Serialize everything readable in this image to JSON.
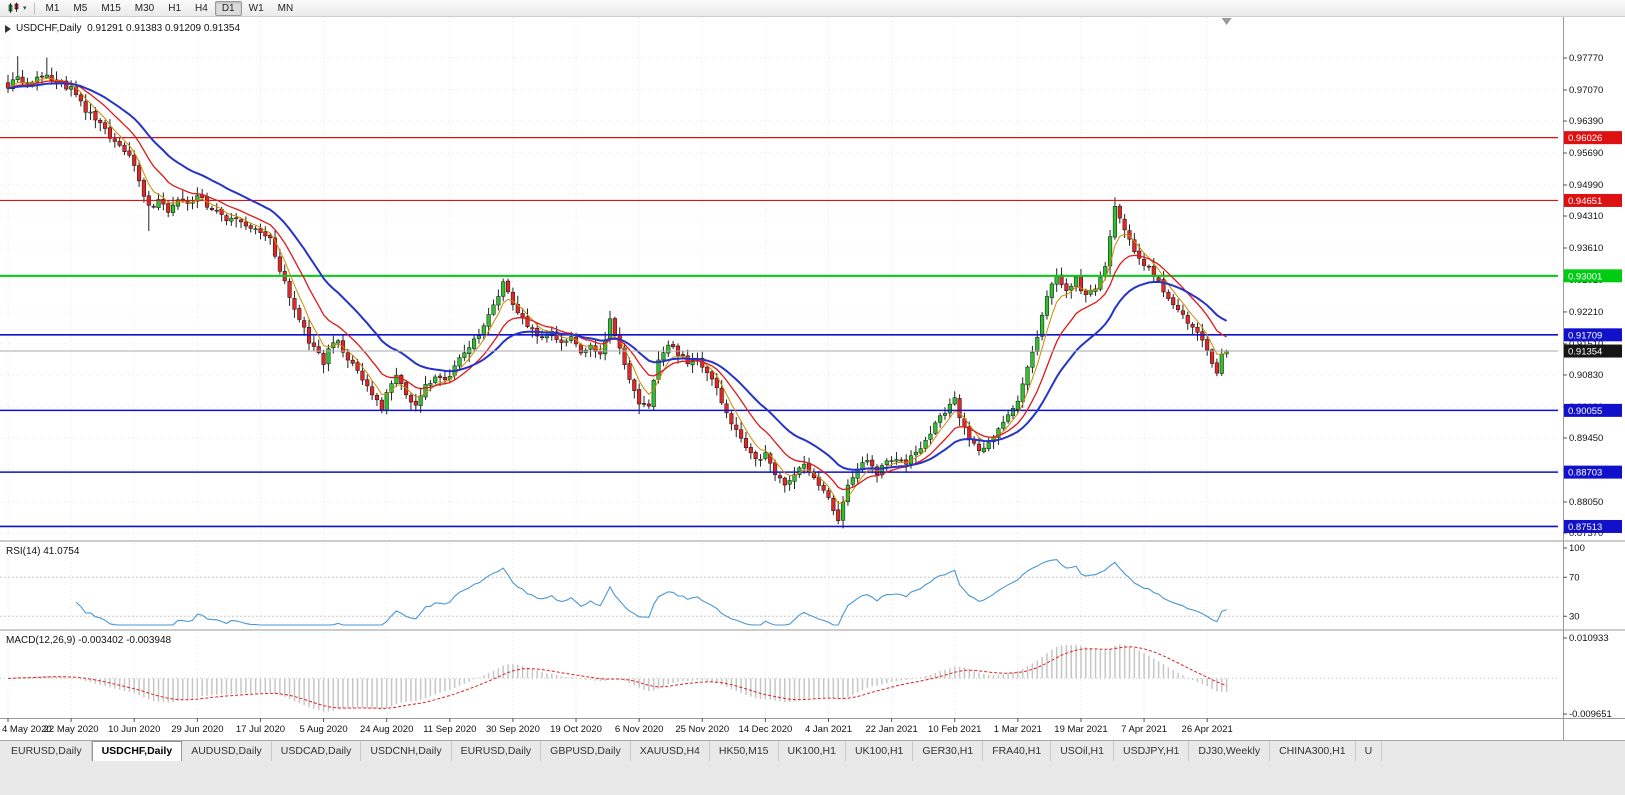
{
  "toolbar": {
    "timeframes": [
      "M1",
      "M5",
      "M15",
      "M30",
      "H1",
      "H4",
      "D1",
      "W1",
      "MN"
    ],
    "active_timeframe": "D1",
    "chart_icon": "candlestick-chart-icon",
    "caret_glyph": "▾"
  },
  "chart_header": {
    "title": "USDCHF,Daily  0.91291 0.91383 0.91209 0.91354",
    "symbol": "USDCHF",
    "period": "Daily",
    "open": "0.91291",
    "high": "0.91383",
    "low": "0.91209",
    "close": "0.91354"
  },
  "panels": {
    "rsi_label": "RSI(14) 41.0754",
    "macd_label": "MACD(12,26,9) -0.003402 -0.003948"
  },
  "tabs": {
    "items": [
      {
        "label": "EURUSD,Daily",
        "active": false
      },
      {
        "label": "USDCHF,Daily",
        "active": true
      },
      {
        "label": "AUDUSD,Daily",
        "active": false
      },
      {
        "label": "USDCAD,Daily",
        "active": false
      },
      {
        "label": "USDCNH,Daily",
        "active": false
      },
      {
        "label": "EURUSD,Daily",
        "active": false
      },
      {
        "label": "GBPUSD,Daily",
        "active": false
      },
      {
        "label": "XAUUSD,H4",
        "active": false
      },
      {
        "label": "HK50,M15",
        "active": false
      },
      {
        "label": "UK100,H1",
        "active": false
      },
      {
        "label": "UK100,H1",
        "active": false
      },
      {
        "label": "GER30,H1",
        "active": false
      },
      {
        "label": "FRA40,H1",
        "active": false
      },
      {
        "label": "USOil,H1",
        "active": false
      },
      {
        "label": "USDJPY,H1",
        "active": false
      },
      {
        "label": "DJ30,Weekly",
        "active": false
      },
      {
        "label": "CHINA300,H1",
        "active": false
      },
      {
        "label": "U",
        "active": false
      }
    ]
  },
  "chart_data": {
    "type": "candlestick",
    "symbol": "USDCHF",
    "timeframe": "Daily",
    "bars": 252,
    "last_bar": {
      "open": 0.91291,
      "high": 0.91383,
      "low": 0.91209,
      "close": 0.91354
    },
    "x_labels": [
      "4 May 2020",
      "22 May 2020",
      "10 Jun 2020",
      "29 Jun 2020",
      "17 Jul 2020",
      "5 Aug 2020",
      "24 Aug 2020",
      "11 Sep 2020",
      "30 Sep 2020",
      "19 Oct 2020",
      "6 Nov 2020",
      "25 Nov 2020",
      "14 Dec 2020",
      "4 Jan 2021",
      "22 Jan 2021",
      "10 Feb 2021",
      "1 Mar 2021",
      "19 Mar 2021",
      "7 Apr 2021",
      "26 Apr 2021"
    ],
    "x_label_interval": 13,
    "y_ticks": [
      "0.97770",
      "0.97070",
      "0.96390",
      "0.95690",
      "0.94990",
      "0.94310",
      "0.93610",
      "0.92910",
      "0.92210",
      "0.91510",
      "0.90830",
      "0.90130",
      "0.89450",
      "0.88750",
      "0.88050",
      "0.87370"
    ],
    "colors": {
      "candle_up": "#2fbf2f",
      "candle_down": "#e02828",
      "wick": "#222222",
      "grid": "#e6e6e6"
    },
    "close_anchors": [
      [
        0,
        0.9712
      ],
      [
        2,
        0.9736
      ],
      [
        4,
        0.9721
      ],
      [
        6,
        0.9734
      ],
      [
        8,
        0.9741
      ],
      [
        10,
        0.9727
      ],
      [
        12,
        0.9715
      ],
      [
        14,
        0.9701
      ],
      [
        16,
        0.9664
      ],
      [
        18,
        0.9641
      ],
      [
        20,
        0.9619
      ],
      [
        22,
        0.9596
      ],
      [
        24,
        0.9571
      ],
      [
        26,
        0.9547
      ],
      [
        27,
        0.9504
      ],
      [
        29,
        0.9449
      ],
      [
        31,
        0.9461
      ],
      [
        33,
        0.9441
      ],
      [
        35,
        0.947
      ],
      [
        37,
        0.9459
      ],
      [
        39,
        0.9477
      ],
      [
        41,
        0.9456
      ],
      [
        43,
        0.9446
      ],
      [
        45,
        0.9426
      ],
      [
        47,
        0.9431
      ],
      [
        49,
        0.9413
      ],
      [
        52,
        0.9397
      ],
      [
        54,
        0.9377
      ],
      [
        56,
        0.9311
      ],
      [
        58,
        0.9253
      ],
      [
        60,
        0.9206
      ],
      [
        62,
        0.9156
      ],
      [
        64,
        0.9129
      ],
      [
        65,
        0.9109
      ],
      [
        66,
        0.9141
      ],
      [
        68,
        0.9154
      ],
      [
        70,
        0.9119
      ],
      [
        72,
        0.9089
      ],
      [
        74,
        0.9061
      ],
      [
        76,
        0.9031
      ],
      [
        77,
        0.9009
      ],
      [
        78,
        0.9051
      ],
      [
        80,
        0.9077
      ],
      [
        82,
        0.9043
      ],
      [
        84,
        0.9013
      ],
      [
        86,
        0.9057
      ],
      [
        88,
        0.9077
      ],
      [
        90,
        0.9067
      ],
      [
        92,
        0.9104
      ],
      [
        94,
        0.9131
      ],
      [
        96,
        0.9157
      ],
      [
        98,
        0.9187
      ],
      [
        100,
        0.9241
      ],
      [
        102,
        0.9281
      ],
      [
        103,
        0.9261
      ],
      [
        104,
        0.9239
      ],
      [
        106,
        0.9207
      ],
      [
        108,
        0.9177
      ],
      [
        110,
        0.9161
      ],
      [
        112,
        0.9177
      ],
      [
        114,
        0.9147
      ],
      [
        116,
        0.9161
      ],
      [
        118,
        0.9134
      ],
      [
        120,
        0.9151
      ],
      [
        122,
        0.9127
      ],
      [
        124,
        0.9203
      ],
      [
        126,
        0.9147
      ],
      [
        128,
        0.9077
      ],
      [
        130,
        0.9021
      ],
      [
        132,
        0.9011
      ],
      [
        134,
        0.9121
      ],
      [
        136,
        0.9147
      ],
      [
        138,
        0.9131
      ],
      [
        140,
        0.9107
      ],
      [
        142,
        0.9117
      ],
      [
        144,
        0.9084
      ],
      [
        146,
        0.9051
      ],
      [
        148,
        0.9004
      ],
      [
        150,
        0.8957
      ],
      [
        152,
        0.8921
      ],
      [
        154,
        0.8901
      ],
      [
        156,
        0.8907
      ],
      [
        158,
        0.8861
      ],
      [
        160,
        0.8847
      ],
      [
        162,
        0.8867
      ],
      [
        164,
        0.8881
      ],
      [
        166,
        0.8851
      ],
      [
        168,
        0.8827
      ],
      [
        170,
        0.8791
      ],
      [
        171,
        0.8761
      ],
      [
        172,
        0.8801
      ],
      [
        173,
        0.8841
      ],
      [
        175,
        0.8881
      ],
      [
        177,
        0.8897
      ],
      [
        179,
        0.8871
      ],
      [
        181,
        0.8891
      ],
      [
        183,
        0.8901
      ],
      [
        185,
        0.8891
      ],
      [
        187,
        0.8911
      ],
      [
        189,
        0.8941
      ],
      [
        191,
        0.8974
      ],
      [
        193,
        0.9001
      ],
      [
        195,
        0.9027
      ],
      [
        196,
        0.8991
      ],
      [
        198,
        0.8937
      ],
      [
        200,
        0.8921
      ],
      [
        202,
        0.8931
      ],
      [
        204,
        0.8961
      ],
      [
        206,
        0.8991
      ],
      [
        208,
        0.9031
      ],
      [
        210,
        0.9097
      ],
      [
        212,
        0.9161
      ],
      [
        214,
        0.9257
      ],
      [
        216,
        0.9297
      ],
      [
        218,
        0.9271
      ],
      [
        220,
        0.9291
      ],
      [
        222,
        0.9254
      ],
      [
        224,
        0.9271
      ],
      [
        226,
        0.9321
      ],
      [
        227,
        0.9387
      ],
      [
        228,
        0.9447
      ],
      [
        229,
        0.9431
      ],
      [
        230,
        0.9404
      ],
      [
        231,
        0.9377
      ],
      [
        232,
        0.9351
      ],
      [
        234,
        0.9327
      ],
      [
        236,
        0.9301
      ],
      [
        238,
        0.9267
      ],
      [
        240,
        0.9241
      ],
      [
        242,
        0.9211
      ],
      [
        244,
        0.9187
      ],
      [
        246,
        0.9157
      ],
      [
        247,
        0.9141
      ],
      [
        248,
        0.9115
      ],
      [
        249,
        0.9093
      ],
      [
        250,
        0.9125
      ],
      [
        251,
        0.91354
      ]
    ],
    "wick_overrides": {
      "2": {
        "high": 0.9781
      },
      "8": {
        "high": 0.9778
      },
      "29": {
        "low": 0.9398
      },
      "77": {
        "low": 0.8999
      },
      "102": {
        "high": 0.9294
      },
      "130": {
        "low": 0.8997
      },
      "171": {
        "low": 0.8756
      },
      "228": {
        "high": 0.9472
      }
    },
    "horizontal_levels": [
      {
        "price": 0.96026,
        "label": "0.96026",
        "color": "#dd1111",
        "width": 1.2
      },
      {
        "price": 0.94651,
        "label": "0.94651",
        "color": "#dd1111",
        "width": 1.2
      },
      {
        "price": 0.93001,
        "label": "0.93001",
        "color": "#00cc11",
        "width": 2
      },
      {
        "price": 0.91709,
        "label": "0.91709",
        "color": "#1111cc",
        "width": 1.6
      },
      {
        "price": 0.90055,
        "label": "0.90055",
        "color": "#1111cc",
        "width": 1.6
      },
      {
        "price": 0.88703,
        "label": "0.88703",
        "color": "#1111cc",
        "width": 1.6
      },
      {
        "price": 0.87513,
        "label": "0.87513",
        "color": "#1111cc",
        "width": 1.6
      }
    ],
    "current_price": {
      "value": 0.91354,
      "label": "0.91354",
      "line_color": "#aaaaaa",
      "badge_color": "#151515"
    },
    "moving_averages": [
      {
        "name": "ema-fast",
        "period": 5,
        "color": "#cc8a00",
        "stroke_width": 1
      },
      {
        "name": "ema-mid",
        "period": 12,
        "color": "#e01818",
        "stroke_width": 1.3
      },
      {
        "name": "ema-slow",
        "period": 24,
        "color": "#2633c8",
        "stroke_width": 2
      }
    ],
    "indicators": {
      "rsi": {
        "period": 14,
        "value": 41.0754,
        "levels": [
          70,
          30
        ],
        "scale_labels": [
          "100",
          "70",
          "30"
        ],
        "color": "#4a97d4",
        "range": [
          20,
          100
        ]
      },
      "macd": {
        "fast": 12,
        "slow": 26,
        "signal": 9,
        "value": -0.003402,
        "signal_value": -0.003948,
        "range": [
          -0.009651,
          0.010933
        ],
        "axis_labels": [
          "0.010933",
          "-0.009651"
        ],
        "histogram_color": "#c6c6c6",
        "signal_color": "#e02020"
      }
    }
  }
}
